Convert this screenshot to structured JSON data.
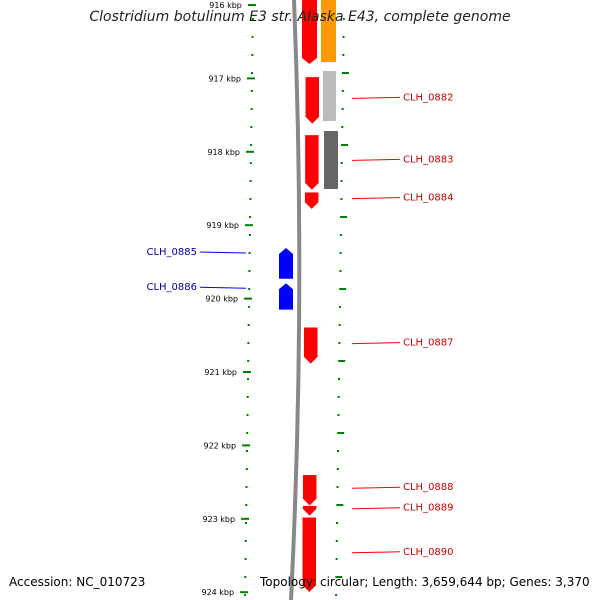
{
  "title": "Clostridium botulinum E3 str. Alaska E43, complete genome",
  "accession_text": "Accession: NC_010723",
  "topology_text": "Topology: circular; Length: 3,659,644 bp; Genes: 3,370",
  "scale_labels": [
    "916 kbp",
    "917 kbp",
    "918 kbp",
    "919 kbp",
    "920 kbp",
    "921 kbp",
    "922 kbp",
    "923 kbp",
    "924 kbp"
  ],
  "colors": {
    "forward_cds": "#ff0000",
    "reverse_cds": "#0000ff",
    "orange_feature": "#ff9900",
    "light_gray_feature": "#bbbbbb",
    "dark_gray_feature": "#666666",
    "backbone": "#888888",
    "tick": "#008000",
    "forward_label": "#cc0000",
    "reverse_label": "#000099"
  },
  "forward_genes": [
    {
      "name": "CLH_0882",
      "start": 916.98,
      "end": 917.62
    },
    {
      "name": "CLH_0883",
      "start": 917.77,
      "end": 918.52
    },
    {
      "name": "CLH_0884",
      "start": 918.55,
      "end": 918.78
    },
    {
      "name": "CLH_0887",
      "start": 920.39,
      "end": 920.89
    },
    {
      "name": "CLH_0888",
      "start": 922.4,
      "end": 922.82
    },
    {
      "name": "CLH_0889",
      "start": 922.82,
      "end": 922.96
    },
    {
      "name": "CLH_0890",
      "start": 922.98,
      "end": 924.0
    }
  ],
  "reverse_genes": [
    {
      "name": "CLH_0885",
      "start": 919.31,
      "end": 919.73
    },
    {
      "name": "CLH_0886",
      "start": 919.79,
      "end": 920.15
    }
  ]
}
